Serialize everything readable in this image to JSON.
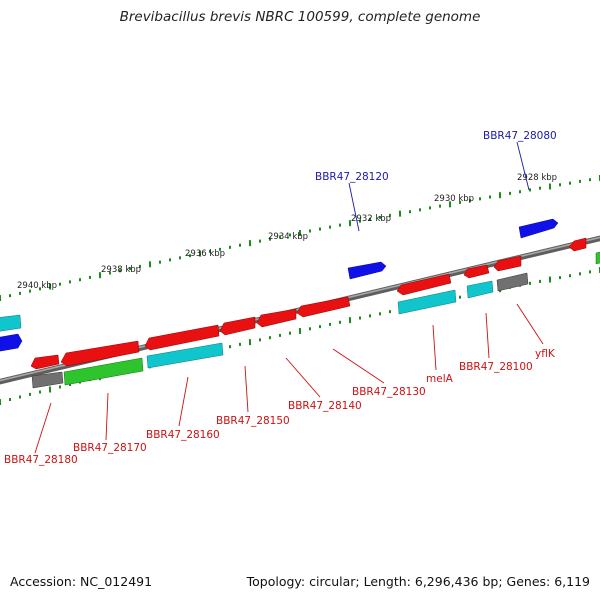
{
  "title": "Brevibacillus brevis NBRC 100599, complete genome",
  "accession": "Accession: NC_012491",
  "summary": "Topology: circular; Length: 6,296,436 bp; Genes: 6,119",
  "colors": {
    "backbone": "#808080",
    "tick": "#1a8a1a",
    "label_forward": "#1a1aa8",
    "label_reverse": "#cc1111",
    "gene_red": "#e81010",
    "gene_blue": "#1010e8",
    "gene_cyan": "#11c5cc",
    "gene_green": "#2ec42e",
    "gene_gray": "#707070"
  },
  "scale_labels": [
    "2928 kbp",
    "2930 kbp",
    "2932 kbp",
    "2934 kbp",
    "2936 kbp",
    "2938 kbp",
    "2940 kbp"
  ],
  "gene_labels_forward": [
    "BBR47_28080",
    "BBR47_28120"
  ],
  "gene_labels_reverse": [
    "yflK",
    "BBR47_28100",
    "melA",
    "BBR47_28130",
    "BBR47_28140",
    "BBR47_28150",
    "BBR47_28160",
    "BBR47_28170",
    "BBR47_28180"
  ]
}
